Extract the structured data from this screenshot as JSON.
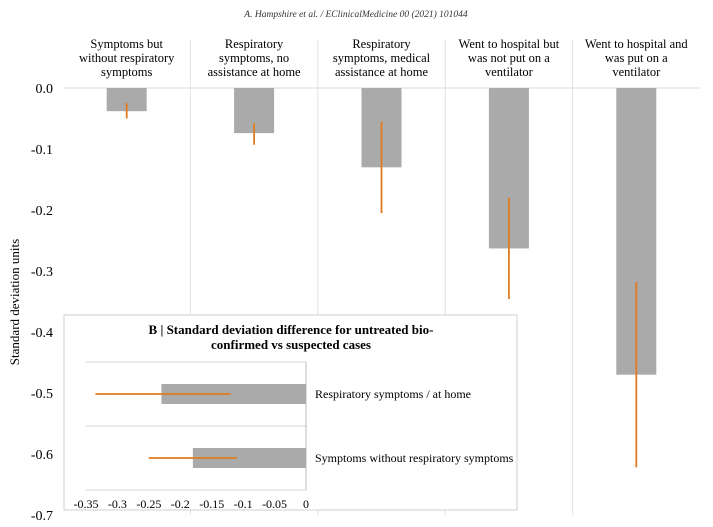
{
  "header": {
    "citation": "A. Hampshire et al. / EClinicalMedicine 00 (2021) 101044"
  },
  "chart_data": [
    {
      "type": "bar",
      "ylabel": "Standard deviation units",
      "ylim": [
        -0.7,
        0.0
      ],
      "yticks": [
        0.0,
        -0.1,
        -0.2,
        -0.3,
        -0.4,
        -0.5,
        -0.6,
        -0.7
      ],
      "ytick_labels": [
        "0.0",
        "-0.1",
        "-0.2",
        "-0.3",
        "-0.4",
        "-0.5",
        "-0.6",
        "-0.7"
      ],
      "categories": [
        [
          "Symptoms but",
          "without respiratory",
          "symptoms"
        ],
        [
          "Respiratory",
          "symptoms, no",
          "assistance at home"
        ],
        [
          "Respiratory",
          "symptoms, medical",
          "assistance at home"
        ],
        [
          "Went to hospital but",
          "was not put on a",
          "ventilator"
        ],
        [
          "Went to hospital and",
          "was put on a",
          "ventilator"
        ]
      ],
      "values": [
        -0.038,
        -0.074,
        -0.13,
        -0.263,
        -0.47
      ],
      "error_low": [
        -0.05,
        -0.093,
        -0.205,
        -0.346,
        -0.622
      ],
      "error_high": [
        -0.025,
        -0.058,
        -0.055,
        -0.18,
        -0.318
      ],
      "bar_color": "#aaaaaa",
      "error_color": "#e07b1f"
    },
    {
      "type": "bar",
      "orientation": "horizontal",
      "title_lines": [
        "B | Standard deviation difference for untreated bio-",
        "confirmed vs suspected cases"
      ],
      "categories": [
        "Respiratory symptoms / at home",
        "Symptoms without respiratory symptoms"
      ],
      "values": [
        -0.23,
        -0.18
      ],
      "error_low": [
        -0.335,
        -0.25
      ],
      "error_high": [
        -0.12,
        -0.11
      ],
      "xlim": [
        -0.35,
        0.0
      ],
      "xticks": [
        -0.35,
        -0.3,
        -0.25,
        -0.2,
        -0.15,
        -0.1,
        -0.05,
        0
      ],
      "xtick_labels": [
        "-0.35",
        "-0.3",
        "-0.25",
        "-0.2",
        "-0.15",
        "-0.1",
        "-0.05",
        "0"
      ],
      "bar_color": "#aaaaaa",
      "error_color": "#e07b1f"
    }
  ]
}
